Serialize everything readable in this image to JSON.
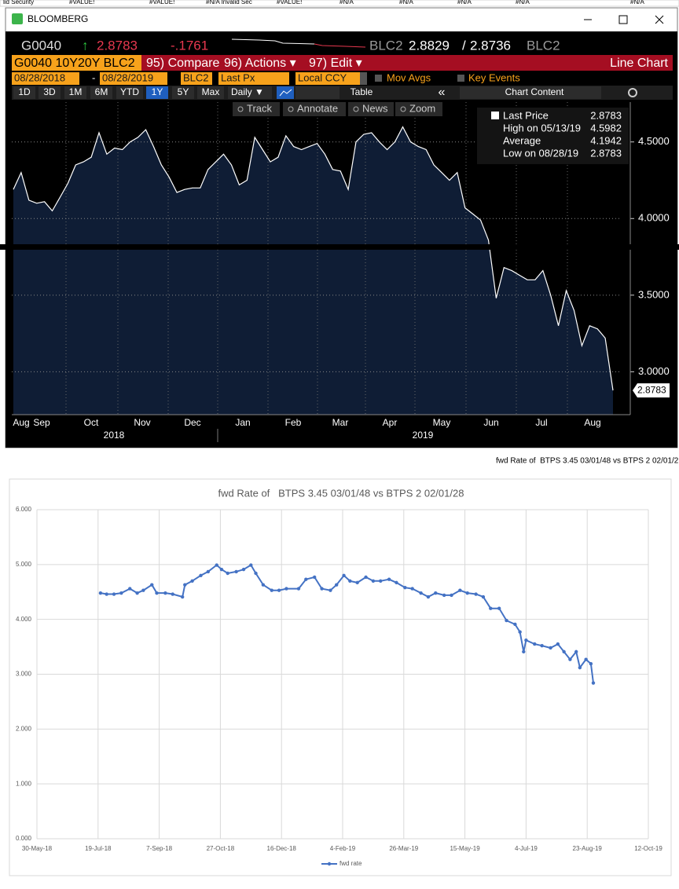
{
  "sheet_row": [
    "lid Security",
    "#VALUE!",
    "#VALUE!",
    "#N/A Invalid Sec",
    "#VALUE!",
    "#N/A",
    "#N/A",
    "#N/A",
    "#N/A",
    "#N/A"
  ],
  "window": {
    "title": "BLOOMBERG"
  },
  "quote": {
    "ticker": "G0040",
    "arrow": "↑",
    "last": "2.8783",
    "change": "-.1761",
    "source": "BLC2",
    "bid": "2.8829",
    "sep": "/",
    "ask": "2.8736",
    "source2": "BLC2"
  },
  "menu": {
    "security": "G0040 10Y20Y BLC2",
    "compare": "95) Compare",
    "actions": "96) Actions ▾",
    "edit": "97) Edit ▾",
    "view": "Line Chart"
  },
  "settings": {
    "start": "08/28/2018",
    "dash": "-",
    "end": "08/28/2019",
    "source": "BLC2",
    "field": "Last Px",
    "currency": "Local CCY",
    "mov_avgs": "Mov Avgs",
    "key_events": "Key Events"
  },
  "periods": [
    "1D",
    "3D",
    "1M",
    "6M",
    "YTD",
    "1Y",
    "5Y",
    "Max"
  ],
  "selected_period": "1Y",
  "frequency": "Daily ▼",
  "table": "Table",
  "collapse": "«",
  "chart_content": "Chart Content",
  "tools": [
    "Track",
    "Annotate",
    "News",
    "Zoom"
  ],
  "cell_label": "fwd Rate of  BTPS 3.45 03/01/48 vs BTPS 2 02/01/2",
  "chart_data": [
    {
      "type": "area",
      "series": [
        {
          "name": "Last Price",
          "color": "#ffffff",
          "fill": "#0f1d35",
          "values": [
            4.19,
            4.3,
            4.12,
            4.1,
            4.11,
            4.05,
            4.14,
            4.23,
            4.35,
            4.37,
            4.4,
            4.56,
            4.42,
            4.46,
            4.45,
            4.5,
            4.53,
            4.58,
            4.47,
            4.35,
            4.27,
            4.17,
            4.19,
            4.2,
            4.2,
            4.32,
            4.37,
            4.42,
            4.35,
            4.22,
            4.25,
            4.53,
            4.45,
            4.37,
            4.4,
            4.54,
            4.47,
            4.45,
            4.47,
            4.49,
            4.42,
            4.32,
            4.31,
            4.19,
            4.5,
            4.55,
            4.56,
            4.5,
            4.45,
            4.5,
            4.5982,
            4.5,
            4.47,
            4.45,
            4.35,
            4.3,
            4.25,
            4.3,
            4.07,
            4.03,
            3.99,
            3.86,
            3.48,
            3.68,
            3.66,
            3.63,
            3.6,
            3.6,
            3.66,
            3.5,
            3.3,
            3.53,
            3.4,
            3.17,
            3.3,
            3.28,
            3.22,
            2.8783
          ]
        }
      ],
      "ylim": [
        2.72,
        4.76
      ],
      "yticks": [
        {
          "value": 3.0,
          "label": "3.0000"
        },
        {
          "value": 3.5,
          "label": "3.5000"
        },
        {
          "value": 4.0,
          "label": "4.0000"
        },
        {
          "value": 4.5,
          "label": "4.5000"
        }
      ],
      "grid": true,
      "months": [
        "Aug",
        "Sep",
        "Oct",
        "Nov",
        "Dec",
        "Jan",
        "Feb",
        "Mar",
        "Apr",
        "May",
        "Jun",
        "Jul",
        "Aug"
      ],
      "years": [
        "2018",
        "2019"
      ],
      "legend": [
        {
          "label": "Last Price",
          "value": 2.8783
        },
        {
          "label": "High on 05/13/19",
          "value": 4.5982
        },
        {
          "label": "Average",
          "value": 4.1942
        },
        {
          "label": "Low on 08/28/19",
          "value": 2.8783
        }
      ]
    },
    {
      "type": "line",
      "title": "fwd Rate of   BTPS 3.45 03/01/48 vs BTPS 2 02/01/28",
      "series": [
        {
          "name": "fwd rate",
          "color": "#4472c4",
          "x": [
            43302,
            43307,
            43313,
            43319,
            43326,
            43332,
            43337,
            43344,
            43348,
            43355,
            43361,
            43369,
            43371,
            43377,
            43384,
            43390,
            43397,
            43401,
            43406,
            43413,
            43419,
            43425,
            43429,
            43435,
            43442,
            43448,
            43454,
            43464,
            43470,
            43477,
            43483,
            43490,
            43495,
            43501,
            43506,
            43512,
            43519,
            43525,
            43531,
            43538,
            43544,
            43551,
            43557,
            43564,
            43570,
            43576,
            43583,
            43589,
            43596,
            43602,
            43609,
            43615,
            43621,
            43628,
            43634,
            43641,
            43645,
            43648,
            43650,
            43657,
            43663,
            43670,
            43676,
            43681,
            43686,
            43691,
            43694,
            43699,
            43703,
            43705
          ],
          "values": [
            4.48,
            4.46,
            4.46,
            4.48,
            4.56,
            4.48,
            4.53,
            4.63,
            4.48,
            4.48,
            4.46,
            4.41,
            4.63,
            4.7,
            4.8,
            4.87,
            4.99,
            4.91,
            4.84,
            4.87,
            4.91,
            4.99,
            4.84,
            4.63,
            4.53,
            4.53,
            4.56,
            4.56,
            4.73,
            4.77,
            4.56,
            4.53,
            4.63,
            4.8,
            4.7,
            4.67,
            4.77,
            4.7,
            4.7,
            4.73,
            4.67,
            4.58,
            4.56,
            4.48,
            4.41,
            4.48,
            4.44,
            4.44,
            4.53,
            4.48,
            4.46,
            4.41,
            4.2,
            4.2,
            3.98,
            3.91,
            3.77,
            3.41,
            3.62,
            3.55,
            3.52,
            3.48,
            3.55,
            3.41,
            3.27,
            3.41,
            3.12,
            3.27,
            3.19,
            2.84
          ]
        }
      ],
      "xlim": [
        43250,
        43750
      ],
      "xticks": [
        {
          "value": 43250,
          "label": "30-May-18"
        },
        {
          "value": 43300,
          "label": "19-Jul-18"
        },
        {
          "value": 43350,
          "label": "7-Sep-18"
        },
        {
          "value": 43400,
          "label": "27-Oct-18"
        },
        {
          "value": 43450,
          "label": "16-Dec-18"
        },
        {
          "value": 43500,
          "label": "4-Feb-19"
        },
        {
          "value": 43550,
          "label": "26-Mar-19"
        },
        {
          "value": 43600,
          "label": "15-May-19"
        },
        {
          "value": 43650,
          "label": "4-Jul-19"
        },
        {
          "value": 43700,
          "label": "23-Aug-19"
        },
        {
          "value": 43750,
          "label": "12-Oct-19"
        }
      ],
      "ylim": [
        0,
        6
      ],
      "yticks": [
        {
          "value": 0,
          "label": "0.000"
        },
        {
          "value": 1,
          "label": "1.000"
        },
        {
          "value": 2,
          "label": "2.000"
        },
        {
          "value": 3,
          "label": "3.000"
        },
        {
          "value": 4,
          "label": "4.000"
        },
        {
          "value": 5,
          "label": "5.000"
        },
        {
          "value": 6,
          "label": "6.000"
        }
      ],
      "grid": true,
      "legend": "bottom"
    }
  ]
}
